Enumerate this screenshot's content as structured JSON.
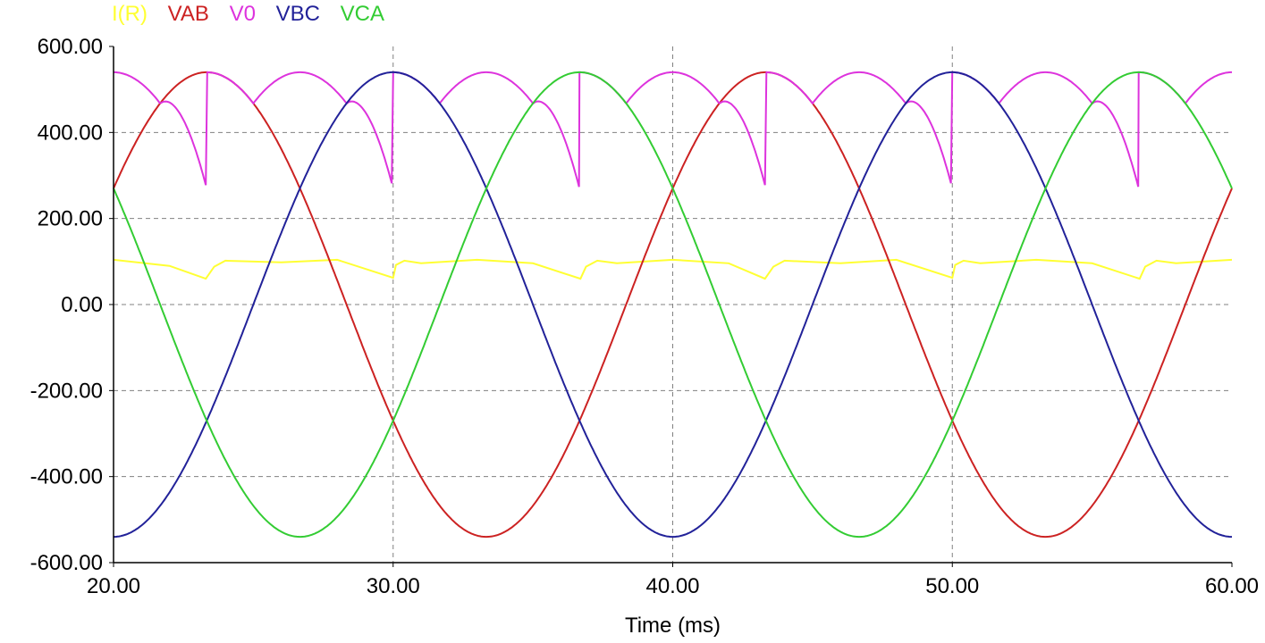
{
  "chart_data": {
    "type": "line",
    "xlabel": "Time (ms)",
    "ylabel": "",
    "xlim": [
      20,
      60
    ],
    "ylim": [
      -600,
      600
    ],
    "x_ticks": [
      "20.00",
      "30.00",
      "40.00",
      "50.00",
      "60.00"
    ],
    "y_ticks": [
      "600.00",
      "400.00",
      "200.00",
      "0.00",
      "-200.00",
      "-400.00",
      "-600.00"
    ],
    "grid": true,
    "legend_position": "top-left",
    "series": [
      {
        "name": "I(R)",
        "color": "#ffff33",
        "kind": "current",
        "x": [
          20,
          22,
          23.3,
          23.6,
          24,
          26,
          28,
          30,
          30.1,
          30.4,
          31,
          33,
          35,
          36.7,
          36.9,
          37.3,
          38,
          40,
          42,
          43.3,
          43.6,
          44,
          46,
          48,
          50,
          50.1,
          50.4,
          51,
          53,
          55,
          56.7,
          56.9,
          57.3,
          58,
          60
        ],
        "values": [
          104,
          90,
          60,
          88,
          102,
          98,
          104,
          62,
          92,
          102,
          96,
          104,
          96,
          60,
          88,
          102,
          96,
          104,
          96,
          60,
          88,
          102,
          96,
          104,
          62,
          92,
          102,
          96,
          104,
          96,
          60,
          88,
          102,
          96,
          104
        ]
      },
      {
        "name": "VAB",
        "color": "#cc2222",
        "amplitude": 540,
        "period_ms": 20,
        "phase_deg": 30
      },
      {
        "name": "V0",
        "color": "#dd33dd",
        "kind": "rectified_max_of_line_voltages_with_dips"
      },
      {
        "name": "VBC",
        "color": "#222299",
        "amplitude": 540,
        "period_ms": 20,
        "phase_deg": -90
      },
      {
        "name": "VCA",
        "color": "#33cc33",
        "amplitude": 540,
        "period_ms": 20,
        "phase_deg": 150
      }
    ]
  }
}
